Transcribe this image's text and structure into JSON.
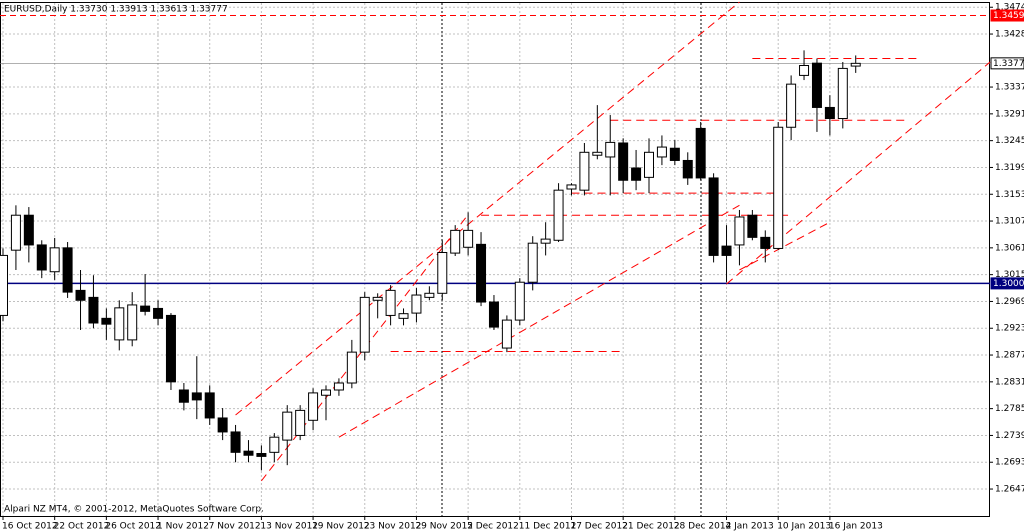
{
  "chart_data": {
    "type": "candlestick",
    "title": "EURUSD,Daily  1.33730 1.33913 1.33613 1.33777",
    "footer": "Alpari NZ MT4, © 2001-2012, MetaQuotes Software Corp.",
    "categories": [
      "16 Oct 2012",
      null,
      null,
      null,
      "22 Oct 2012",
      null,
      null,
      null,
      "26 Oct 2012",
      null,
      null,
      null,
      "1 Nov 2012",
      null,
      null,
      null,
      "7 Nov 2012",
      null,
      null,
      null,
      "13 Nov 2012",
      null,
      null,
      null,
      "19 Nov 2012",
      null,
      null,
      null,
      "23 Nov 2012",
      null,
      null,
      null,
      "29 Nov 2012",
      null,
      null,
      null,
      "5 Dec 2012",
      null,
      null,
      null,
      "11 Dec 2012",
      null,
      null,
      null,
      "17 Dec 2012",
      null,
      null,
      null,
      "21 Dec 2012",
      null,
      null,
      null,
      "28 Dec 2012",
      null,
      null,
      null,
      "4 Jan 2013",
      null,
      null,
      null,
      "10 Jan 2013",
      null,
      null,
      null,
      "16 Jan 2013",
      null,
      null
    ],
    "open": [
      1.2945,
      1.3057,
      1.3117,
      1.3066,
      1.302,
      1.3061,
      1.2988,
      1.2976,
      1.294,
      1.2903,
      1.2903,
      1.2961,
      1.2957,
      1.2945,
      1.2817,
      1.2812,
      1.2812,
      1.2769,
      1.2745,
      1.2712,
      1.2708,
      1.271,
      1.2731,
      1.2739,
      1.2765,
      1.2808,
      1.2817,
      1.2829,
      1.2882,
      1.2971,
      1.2945,
      1.294,
      1.2949,
      1.2976,
      1.2983,
      1.3052,
      1.3062,
      1.3067,
      1.2968,
      1.2889,
      1.2937,
      1.3002,
      1.3069,
      1.3074,
      1.3162,
      1.316,
      1.322,
      1.3217,
      1.3241,
      1.3198,
      1.3182,
      1.3217,
      1.3232,
      1.3211,
      1.3266,
      1.3181,
      1.3064,
      1.3066,
      1.3117,
      1.3079,
      1.306,
      1.3268,
      1.3357,
      1.3378,
      1.3302,
      1.3283,
      1.3373
    ],
    "high": [
      1.306,
      1.3134,
      1.3131,
      1.3074,
      1.3078,
      1.3071,
      1.3023,
      1.3014,
      1.2957,
      1.2971,
      1.2985,
      1.3016,
      1.2971,
      1.2949,
      1.2829,
      1.2875,
      1.2825,
      1.2786,
      1.2757,
      1.2731,
      1.2722,
      1.2743,
      1.2791,
      1.2791,
      1.282,
      1.2825,
      1.2837,
      1.2903,
      1.2985,
      1.2983,
      1.2997,
      1.2957,
      1.2992,
      1.2995,
      1.3074,
      1.31,
      1.3122,
      1.3088,
      1.298,
      1.2945,
      1.3009,
      1.3081,
      1.3105,
      1.3172,
      1.3172,
      1.3241,
      1.3306,
      1.3289,
      1.3249,
      1.3229,
      1.3249,
      1.3254,
      1.3246,
      1.3225,
      1.3277,
      1.3189,
      1.31,
      1.3126,
      1.3126,
      1.3091,
      1.3277,
      1.3357,
      1.34,
      1.3386,
      1.3323,
      1.338,
      1.33913
    ],
    "low": [
      1.2935,
      1.3023,
      1.3036,
      1.3009,
      1.3006,
      1.2975,
      1.292,
      1.2923,
      1.2903,
      1.2885,
      1.2892,
      1.2945,
      1.2928,
      1.2817,
      1.2782,
      1.2767,
      1.2757,
      1.2731,
      1.2693,
      1.2693,
      1.2679,
      1.2693,
      1.2688,
      1.2731,
      1.2748,
      1.2765,
      1.2807,
      1.282,
      1.2868,
      1.294,
      1.2928,
      1.2928,
      1.2933,
      1.2971,
      1.2971,
      1.3047,
      1.3048,
      1.2961,
      1.292,
      1.2882,
      1.2928,
      1.2988,
      1.3048,
      1.3071,
      1.3151,
      1.3151,
      1.3213,
      1.3151,
      1.3155,
      1.316,
      1.3155,
      1.3203,
      1.3203,
      1.3169,
      1.3177,
      1.3036,
      1.3002,
      1.3031,
      1.3074,
      1.3036,
      1.3057,
      1.3246,
      1.3349,
      1.326,
      1.3254,
      1.3266,
      1.33613
    ],
    "close": [
      1.3048,
      1.3117,
      1.3066,
      1.3023,
      1.3061,
      1.2985,
      1.2971,
      1.2932,
      1.293,
      1.2958,
      1.2963,
      1.2952,
      1.294,
      1.2831,
      1.2796,
      1.28,
      1.2769,
      1.2745,
      1.271,
      1.2705,
      1.2703,
      1.2736,
      1.2779,
      1.2782,
      1.2812,
      1.2817,
      1.2829,
      1.2882,
      1.2976,
      1.2976,
      1.2988,
      1.2948,
      1.298,
      1.2983,
      1.3053,
      1.3091,
      1.3091,
      1.2968,
      1.2925,
      1.2937,
      1.3002,
      1.3069,
      1.3076,
      1.316,
      1.3169,
      1.3225,
      1.3225,
      1.3242,
      1.3177,
      1.3177,
      1.3225,
      1.3234,
      1.3211,
      1.3181,
      1.3181,
      1.3048,
      1.3048,
      1.3114,
      1.3079,
      1.306,
      1.3268,
      1.3342,
      1.3374,
      1.3302,
      1.3283,
      1.3369,
      1.33777
    ],
    "ylim": [
      1.2599,
      1.3483
    ],
    "yticks": [
      {
        "value": 1.3474,
        "label": "1.34740"
      },
      {
        "value": 1.3428,
        "label": "1.34280"
      },
      {
        "value": 1.3337,
        "label": "1.33370"
      },
      {
        "value": 1.3291,
        "label": "1.32910"
      },
      {
        "value": 1.3245,
        "label": "1.32450"
      },
      {
        "value": 1.3199,
        "label": "1.31990"
      },
      {
        "value": 1.3153,
        "label": "1.31530"
      },
      {
        "value": 1.3107,
        "label": "1.31070"
      },
      {
        "value": 1.3061,
        "label": "1.30610"
      },
      {
        "value": 1.3015,
        "label": "1.30150"
      },
      {
        "value": 1.2969,
        "label": "1.29690"
      },
      {
        "value": 1.2923,
        "label": "1.29230"
      },
      {
        "value": 1.2877,
        "label": "1.28770"
      },
      {
        "value": 1.2831,
        "label": "1.28310"
      },
      {
        "value": 1.2785,
        "label": "1.27850"
      },
      {
        "value": 1.2739,
        "label": "1.27390"
      },
      {
        "value": 1.2693,
        "label": "1.26930"
      },
      {
        "value": 1.2647,
        "label": "1.26470"
      }
    ],
    "grid": true,
    "price_levels": [
      {
        "value": 1.34598,
        "label": "1.34598",
        "color": "#ff0000",
        "text_color": "#ffffff",
        "style": "dashed"
      },
      {
        "value": 1.3,
        "label": "1.30000",
        "color": "#000080",
        "text_color": "#ffffff",
        "style": "solid"
      },
      {
        "value": 1.33777,
        "label": "1.33777",
        "color": "#ffffff",
        "text_color": "#000000",
        "style": "thin"
      }
    ],
    "trendline_color": "#ff0000",
    "trendlines": [
      {
        "start": [
          18,
          1.2774
        ],
        "end": [
          57,
          1.3483
        ]
      },
      {
        "start": [
          20,
          1.2661
        ],
        "end": [
          36,
          1.3118
        ]
      },
      {
        "start": [
          26,
          1.2736
        ],
        "end": [
          57,
          1.3134
        ]
      },
      {
        "start": [
          56,
          1.2999
        ],
        "end": [
          76.4,
          1.338
        ]
      },
      {
        "start": [
          57,
          1.3023
        ],
        "end": [
          64,
          1.3105
        ]
      },
      {
        "start": [
          30,
          1.2883
        ],
        "end": [
          48,
          1.2883
        ]
      },
      {
        "start": [
          37,
          1.3117
        ],
        "end": [
          61,
          1.3117
        ]
      },
      {
        "start": [
          44,
          1.3155
        ],
        "end": [
          60,
          1.3155
        ]
      },
      {
        "start": [
          47,
          1.328
        ],
        "end": [
          70,
          1.328
        ]
      },
      {
        "start": [
          58,
          1.3386
        ],
        "end": [
          71,
          1.3386
        ]
      }
    ]
  }
}
